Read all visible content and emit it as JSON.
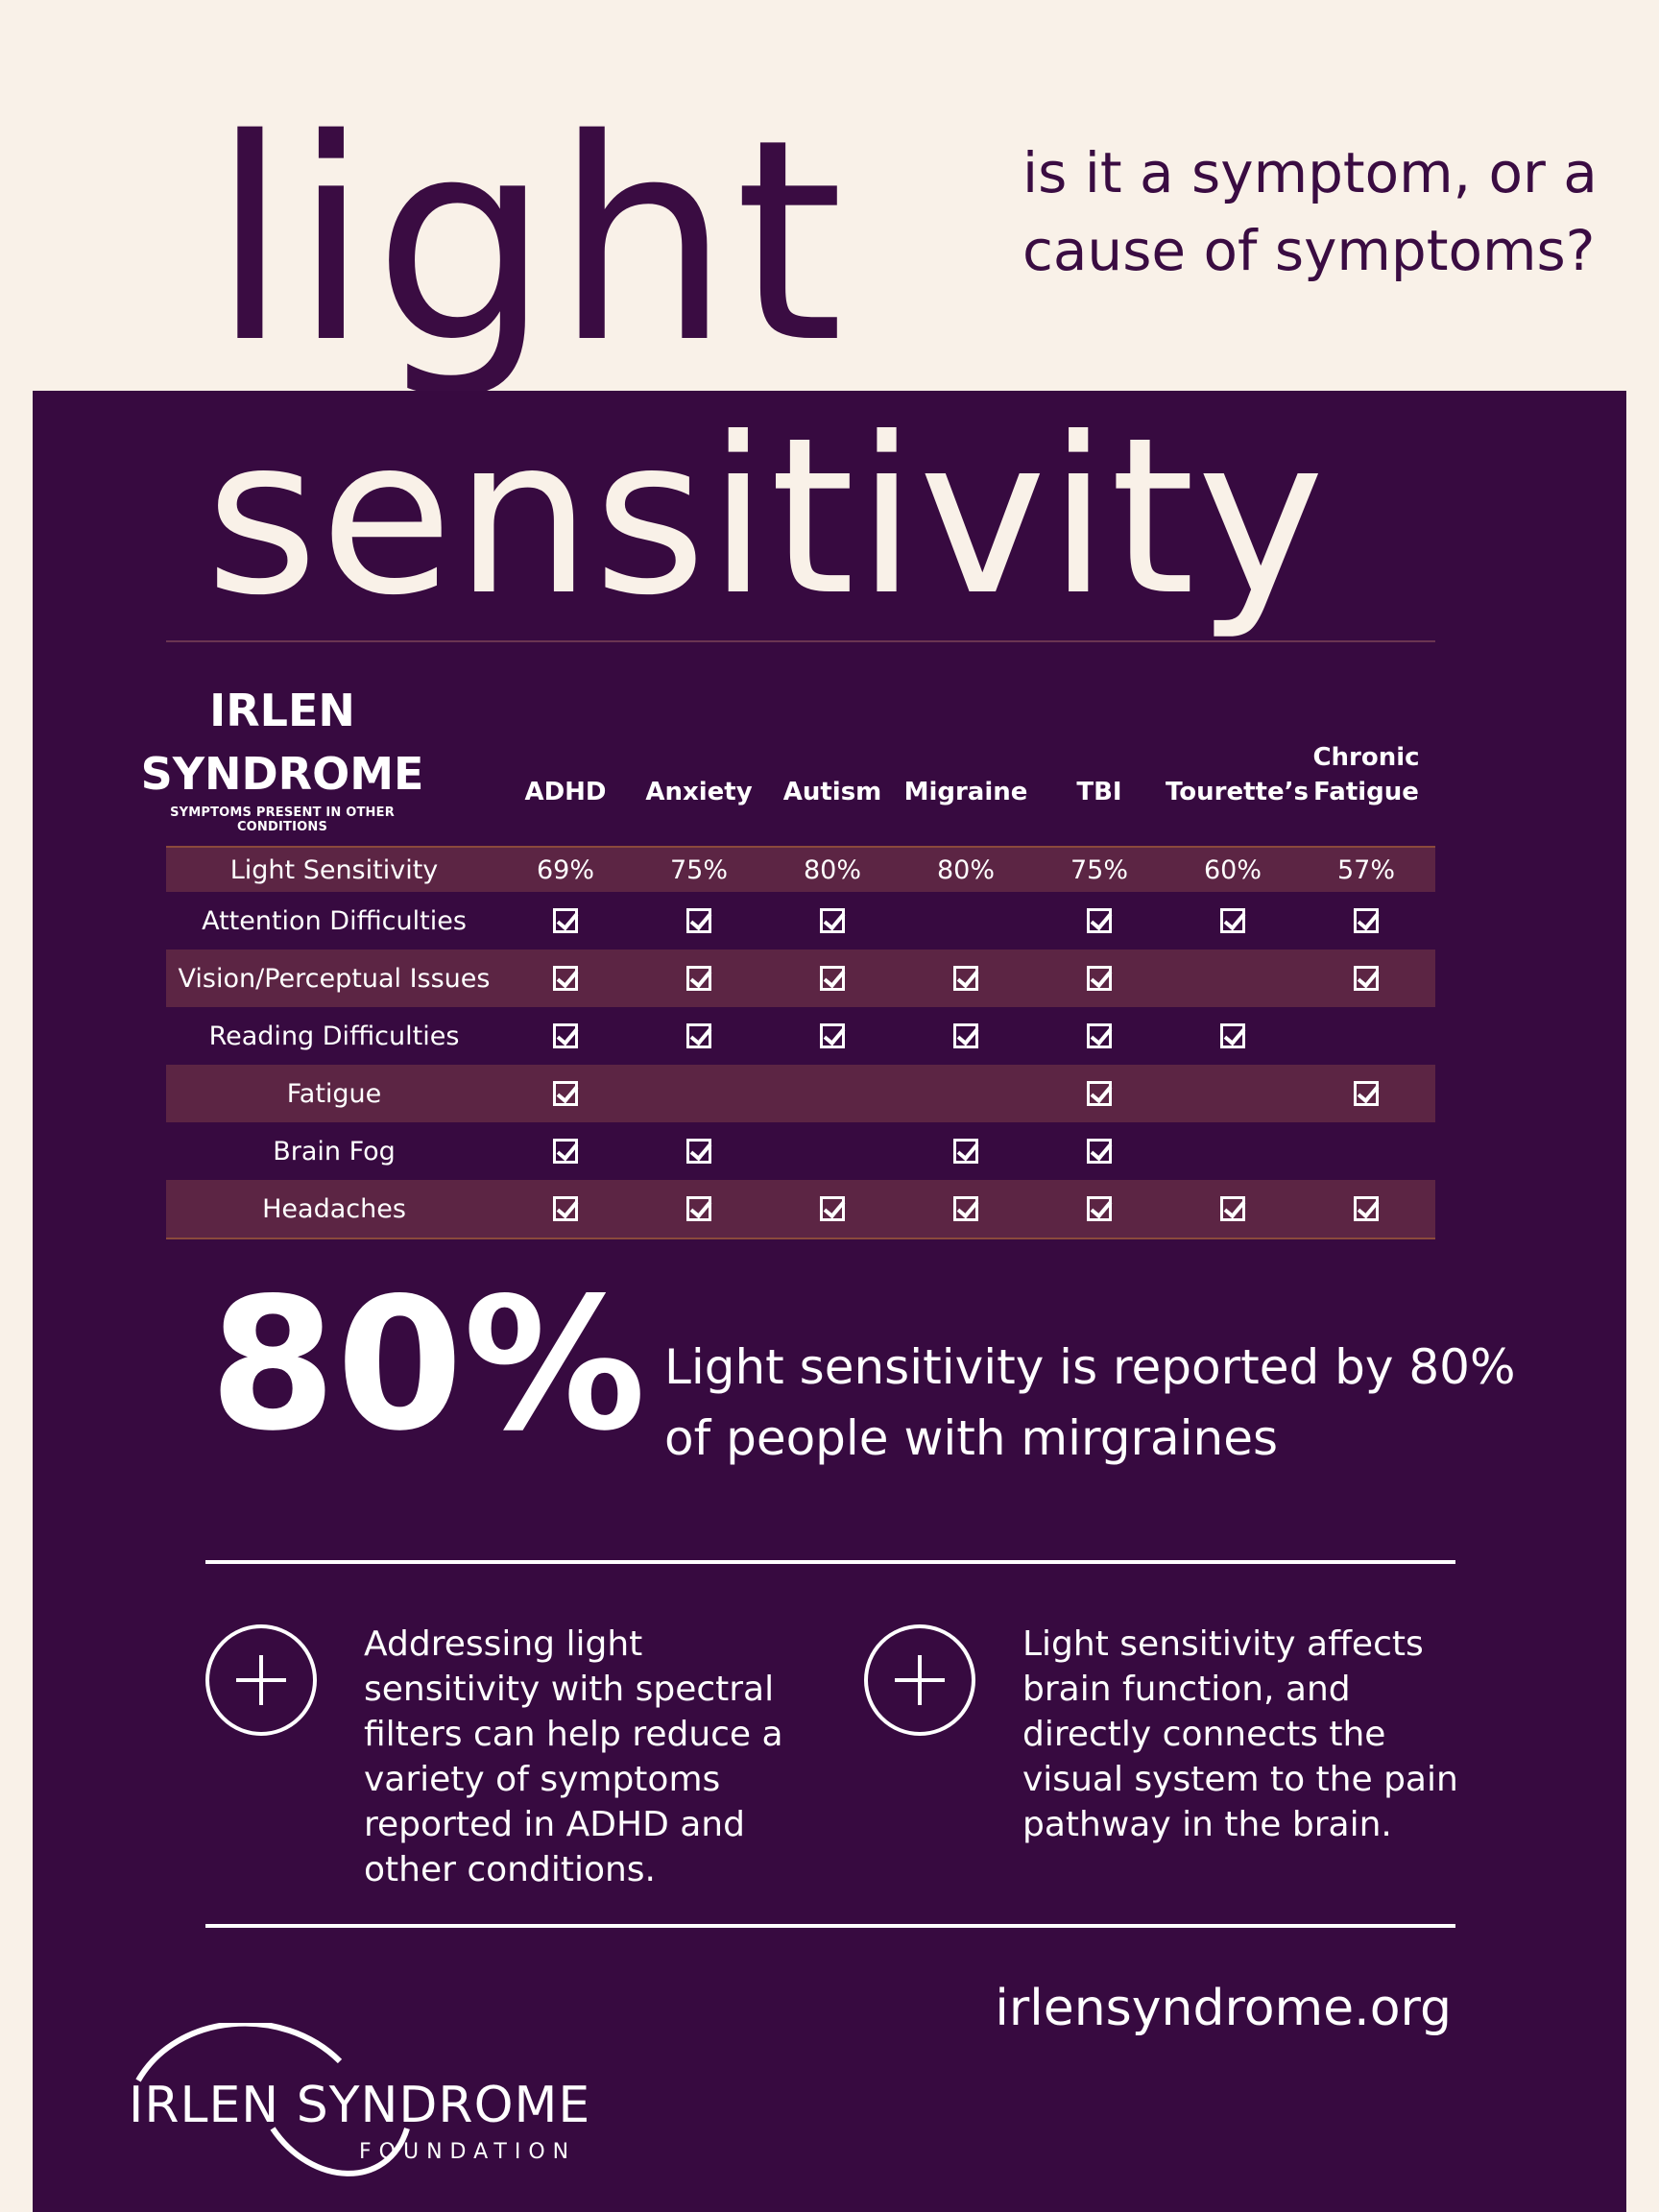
{
  "header": {
    "title_line1": "light",
    "question": "is it a symptom, or a cause of symptoms?",
    "title_line2": "sensitivity"
  },
  "table": {
    "brand_title_line1": "IRLEN",
    "brand_title_line2": "SYNDROME",
    "brand_subtitle": "SYMPTOMS PRESENT IN OTHER CONDITIONS",
    "columns": [
      "ADHD",
      "Anxiety",
      "Autism",
      "Migraine",
      "TBI",
      "Tourette’s",
      "Chronic Fatigue"
    ],
    "rows": [
      {
        "label": "Light Sensitivity",
        "values": [
          "69%",
          "75%",
          "80%",
          "80%",
          "75%",
          "60%",
          "57%"
        ]
      },
      {
        "label": "Attention Difficulties",
        "checks": [
          true,
          true,
          true,
          false,
          true,
          true,
          true
        ]
      },
      {
        "label": "Vision/Perceptual Issues",
        "checks": [
          true,
          true,
          true,
          true,
          true,
          false,
          true
        ]
      },
      {
        "label": "Reading Difficulties",
        "checks": [
          true,
          true,
          true,
          true,
          true,
          true,
          false
        ]
      },
      {
        "label": "Fatigue",
        "checks": [
          true,
          false,
          false,
          false,
          true,
          false,
          true
        ]
      },
      {
        "label": "Brain Fog",
        "checks": [
          true,
          true,
          false,
          true,
          true,
          false,
          false
        ]
      },
      {
        "label": "Headaches",
        "checks": [
          true,
          true,
          true,
          true,
          true,
          true,
          true
        ]
      }
    ]
  },
  "stat": {
    "value": "80%",
    "text": "Light sensitivity is reported by 80% of people with mirgraines"
  },
  "notes": [
    "Addressing light sensitivity with spectral filters can help reduce a variety of symptoms reported in ADHD and other conditions.",
    "Light sensitivity affects brain function, and directly connects the visual system to the pain pathway in the brain."
  ],
  "footer": {
    "url": "irlensyndrome.org",
    "logo_main": "IRLEN SYNDROME",
    "logo_sub": "FOUNDATION"
  },
  "colors": {
    "background": "#f9f1e8",
    "panel": "#370a40",
    "row_shade": "#5c2544",
    "accent_line": "#8a4a3c"
  }
}
